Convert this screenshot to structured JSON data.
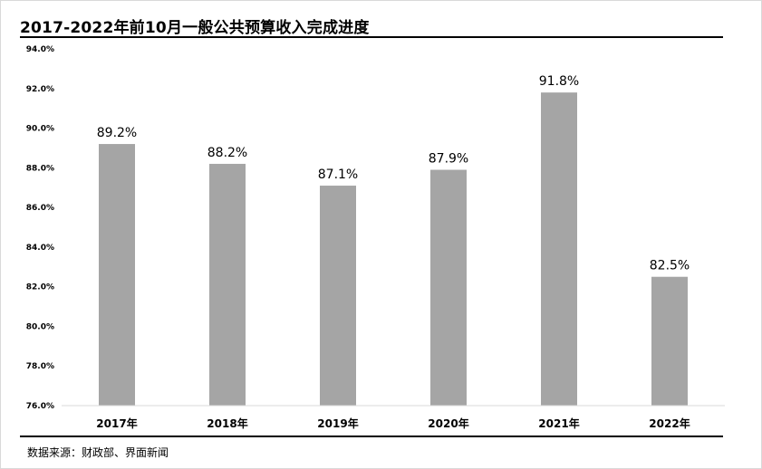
{
  "title": "2017-2022年前10月一般公共预算收入完成进度",
  "source": "数据来源：财政部、界面新闻",
  "chart_data": {
    "type": "bar",
    "categories": [
      "2017年",
      "2018年",
      "2019年",
      "2020年",
      "2021年",
      "2022年"
    ],
    "values": [
      89.2,
      88.2,
      87.1,
      87.9,
      91.8,
      82.5
    ],
    "value_labels": [
      "89.2%",
      "88.2%",
      "87.1%",
      "87.9%",
      "91.8%",
      "82.5%"
    ],
    "ylim": [
      76.0,
      94.0
    ],
    "yticks": [
      "76.0%",
      "78.0%",
      "80.0%",
      "82.0%",
      "84.0%",
      "86.0%",
      "88.0%",
      "90.0%",
      "92.0%",
      "94.0%"
    ],
    "grid": false,
    "bar_color": "#a5a5a5",
    "axis_color": "#d9d9d9",
    "xlabel": "",
    "ylabel": ""
  }
}
